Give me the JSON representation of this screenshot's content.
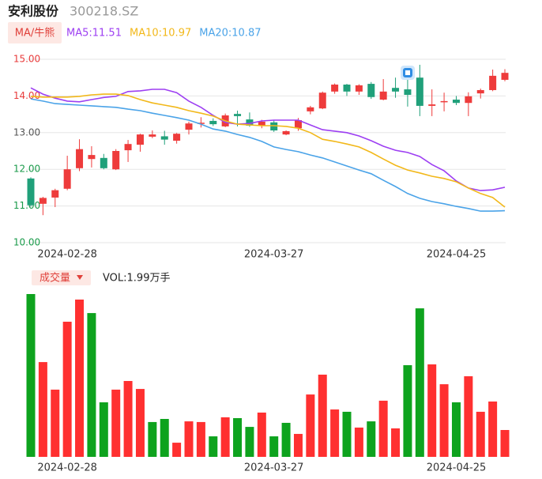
{
  "chart_data": [
    {
      "type": "candlestick",
      "title": "安利股份",
      "subtitle": "300218.SZ",
      "legend_title": "MA/牛熊",
      "categories": [
        null,
        null,
        null,
        "2024-02-28",
        null,
        null,
        null,
        null,
        null,
        null,
        null,
        null,
        null,
        null,
        null,
        null,
        null,
        null,
        null,
        null,
        "2024-03-27",
        null,
        null,
        null,
        null,
        null,
        null,
        null,
        null,
        null,
        null,
        null,
        null,
        null,
        null,
        "2024-04-25",
        null,
        null,
        null,
        null
      ],
      "open": [
        11.75,
        11.06,
        11.23,
        11.47,
        12.03,
        12.28,
        12.31,
        12.0,
        12.52,
        12.67,
        12.89,
        12.9,
        12.78,
        13.08,
        13.24,
        13.32,
        13.17,
        13.51,
        13.36,
        13.19,
        13.28,
        12.95,
        13.12,
        13.58,
        13.66,
        14.12,
        14.31,
        14.12,
        14.33,
        13.9,
        14.22,
        14.18,
        14.5,
        13.73,
        13.84,
        13.9,
        13.81,
        14.07,
        14.16,
        14.44
      ],
      "high": [
        11.78,
        11.25,
        11.47,
        12.37,
        12.82,
        12.63,
        12.42,
        12.55,
        12.8,
        12.97,
        13.06,
        13.05,
        12.99,
        13.3,
        13.42,
        13.39,
        13.52,
        13.6,
        13.55,
        13.35,
        13.33,
        13.06,
        13.4,
        13.73,
        14.12,
        14.34,
        14.33,
        14.32,
        14.38,
        14.46,
        14.5,
        14.74,
        14.85,
        14.18,
        14.09,
        14.0,
        14.1,
        14.2,
        14.72,
        14.73
      ],
      "low": [
        10.98,
        10.75,
        10.97,
        11.43,
        11.95,
        12.05,
        12.0,
        11.98,
        12.2,
        12.48,
        12.85,
        12.67,
        12.7,
        12.95,
        13.14,
        13.18,
        13.15,
        13.17,
        13.16,
        13.12,
        13.02,
        12.93,
        13.05,
        13.5,
        13.64,
        14.06,
        14.0,
        14.03,
        13.92,
        13.88,
        13.95,
        13.71,
        13.45,
        13.45,
        13.58,
        13.75,
        13.45,
        13.93,
        14.13,
        14.4
      ],
      "close": [
        11.02,
        11.22,
        11.43,
        12.0,
        12.55,
        12.39,
        12.03,
        12.5,
        12.69,
        12.95,
        12.95,
        12.81,
        12.97,
        13.25,
        13.27,
        13.23,
        13.47,
        13.45,
        13.19,
        13.3,
        13.06,
        13.04,
        13.34,
        13.69,
        14.09,
        14.31,
        14.12,
        14.29,
        13.97,
        14.12,
        14.12,
        14.03,
        13.73,
        13.77,
        13.86,
        13.81,
        13.99,
        14.16,
        14.55,
        14.63
      ],
      "up_color": "#ee3b3b",
      "down_color": "#20a07a",
      "series": [
        {
          "name": "MA5:11.51",
          "color": "#9d3ff2",
          "values": [
            14.22,
            14.05,
            13.94,
            13.86,
            13.84,
            13.9,
            13.96,
            13.99,
            14.12,
            14.14,
            14.18,
            14.18,
            14.09,
            13.86,
            13.69,
            13.47,
            13.28,
            13.23,
            13.25,
            13.32,
            13.34,
            13.34,
            13.34,
            13.21,
            13.08,
            13.04,
            13.0,
            12.91,
            12.78,
            12.63,
            12.52,
            12.46,
            12.35,
            12.13,
            11.96,
            11.68,
            11.49,
            11.42,
            11.44,
            11.51
          ]
        },
        {
          "name": "MA10:10.97",
          "color": "#f2b81a",
          "values": [
            13.99,
            13.97,
            13.97,
            13.97,
            13.99,
            14.03,
            14.05,
            14.05,
            14.01,
            13.9,
            13.81,
            13.75,
            13.69,
            13.6,
            13.53,
            13.45,
            13.32,
            13.23,
            13.21,
            13.19,
            13.19,
            13.17,
            13.12,
            13.0,
            12.82,
            12.76,
            12.69,
            12.61,
            12.46,
            12.28,
            12.11,
            11.98,
            11.9,
            11.81,
            11.75,
            11.66,
            11.49,
            11.34,
            11.23,
            10.97
          ]
        },
        {
          "name": "MA20:10.87",
          "color": "#4aa3e8",
          "values": [
            13.92,
            13.86,
            13.79,
            13.77,
            13.75,
            13.73,
            13.71,
            13.69,
            13.64,
            13.6,
            13.53,
            13.47,
            13.41,
            13.34,
            13.23,
            13.1,
            13.04,
            12.95,
            12.87,
            12.76,
            12.61,
            12.54,
            12.48,
            12.39,
            12.31,
            12.2,
            12.09,
            11.98,
            11.88,
            11.7,
            11.53,
            11.34,
            11.21,
            11.12,
            11.06,
            10.99,
            10.93,
            10.86,
            10.86,
            10.87
          ]
        }
      ],
      "ylim": [
        10,
        15
      ],
      "yticks": [
        {
          "value": 10,
          "label": "10.00"
        },
        {
          "value": 11,
          "label": "11.00"
        },
        {
          "value": 12,
          "label": "12.00"
        },
        {
          "value": 13,
          "label": "13.00"
        },
        {
          "value": 14,
          "label": "14.00"
        },
        {
          "value": 15,
          "label": "15.00"
        }
      ],
      "ytick_colors": [
        "#1a9a4a",
        "#1a9a4a",
        "#1a9a4a",
        "#555555",
        "#e83b3b",
        "#e83b3b"
      ],
      "grid": true
    },
    {
      "type": "bar",
      "title": "成交量",
      "subtitle": "VOL:1.99万手",
      "categories": [
        null,
        null,
        null,
        "2024-02-28",
        null,
        null,
        null,
        null,
        null,
        null,
        null,
        null,
        null,
        null,
        null,
        null,
        null,
        null,
        null,
        null,
        "2024-03-27",
        null,
        null,
        null,
        null,
        null,
        null,
        null,
        null,
        null,
        null,
        null,
        null,
        null,
        null,
        "2024-04-25",
        null,
        null,
        null,
        null
      ],
      "values": [
        12.06,
        7.02,
        4.98,
        10.01,
        11.65,
        10.65,
        4.04,
        4.98,
        5.62,
        5.03,
        2.58,
        2.81,
        1.05,
        2.63,
        2.58,
        1.52,
        2.93,
        2.87,
        2.22,
        3.28,
        1.52,
        2.52,
        1.7,
        4.62,
        6.09,
        3.51,
        3.34,
        2.17,
        2.63,
        4.16,
        2.11,
        6.79,
        11.0,
        6.85,
        5.38,
        4.04,
        5.97,
        3.34,
        4.1,
        1.99
      ],
      "colors": [
        "#0ea31e",
        "#ff3030",
        "#ff3030",
        "#ff3030",
        "#ff3030",
        "#0ea31e",
        "#0ea31e",
        "#ff3030",
        "#ff3030",
        "#ff3030",
        "#0ea31e",
        "#0ea31e",
        "#ff3030",
        "#ff3030",
        "#ff3030",
        "#0ea31e",
        "#ff3030",
        "#0ea31e",
        "#0ea31e",
        "#ff3030",
        "#0ea31e",
        "#0ea31e",
        "#ff3030",
        "#ff3030",
        "#ff3030",
        "#ff3030",
        "#0ea31e",
        "#ff3030",
        "#0ea31e",
        "#ff3030",
        "#ff3030",
        "#0ea31e",
        "#0ea31e",
        "#ff3030",
        "#ff3030",
        "#0ea31e",
        "#ff3030",
        "#ff3030",
        "#ff3030",
        "#ff3030"
      ]
    }
  ]
}
